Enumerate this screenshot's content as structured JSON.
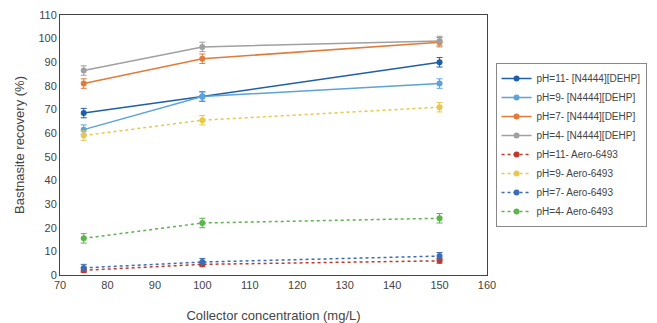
{
  "chart_data": {
    "type": "line",
    "x": [
      75,
      100,
      150
    ],
    "series": [
      {
        "name": "pH=11- [N4444][DEHP]",
        "color": "#1f5fa6",
        "line_style": "solid",
        "marker": "circle",
        "values": [
          68.5,
          75.5,
          90.0
        ],
        "yerr": [
          2.0,
          2.0,
          2.0
        ]
      },
      {
        "name": "pH=9- [N4444][DEHP]",
        "color": "#5ba3d9",
        "line_style": "solid",
        "marker": "circle",
        "values": [
          61.5,
          75.5,
          81.0
        ],
        "yerr": [
          2.0,
          2.0,
          2.0
        ]
      },
      {
        "name": "pH=7- [N4444][DEHP]",
        "color": "#e07b3a",
        "line_style": "solid",
        "marker": "circle",
        "values": [
          81.0,
          91.5,
          98.5
        ],
        "yerr": [
          2.0,
          2.0,
          2.0
        ]
      },
      {
        "name": "pH=4- [N4444][DEHP]",
        "color": "#a0a0a0",
        "line_style": "solid",
        "marker": "circle",
        "values": [
          86.5,
          96.5,
          99.0
        ],
        "yerr": [
          2.0,
          2.0,
          2.0
        ]
      },
      {
        "name": "pH=11- Aero-6493",
        "color": "#c0392b",
        "line_style": "dotted",
        "marker": "circle",
        "values": [
          2.0,
          4.5,
          6.0
        ],
        "yerr": [
          1.0,
          1.0,
          1.0
        ]
      },
      {
        "name": "pH=9- Aero-6493",
        "color": "#e8c84a",
        "line_style": "dotted",
        "marker": "circle",
        "values": [
          59.0,
          65.5,
          71.0
        ],
        "yerr": [
          2.0,
          2.0,
          2.0
        ]
      },
      {
        "name": "pH=7- Aero-6493",
        "color": "#3a6db5",
        "line_style": "dotted",
        "marker": "circle",
        "values": [
          3.0,
          5.5,
          8.0
        ],
        "yerr": [
          1.5,
          1.5,
          1.5
        ]
      },
      {
        "name": "pH=4- Aero-6493",
        "color": "#5ab54b",
        "line_style": "dotted",
        "marker": "circle",
        "values": [
          15.5,
          22.0,
          24.0
        ],
        "yerr": [
          2.0,
          2.0,
          2.0
        ]
      }
    ],
    "x_label": "Collector concentration (mg/L)",
    "y_label": "Bastnasite recovery (%)",
    "xlim": [
      70,
      160
    ],
    "ylim": [
      0,
      110
    ],
    "xticks": [
      70,
      80,
      90,
      100,
      110,
      120,
      130,
      140,
      150,
      160
    ],
    "yticks": [
      0,
      10,
      20,
      30,
      40,
      50,
      60,
      70,
      80,
      90,
      100,
      110
    ],
    "grid": false,
    "legend": "right"
  }
}
